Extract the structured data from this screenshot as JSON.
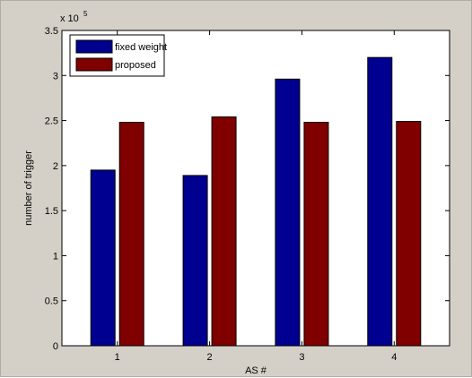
{
  "colors": {
    "figure_bg": "#d4d0c8",
    "axes_bg": "#ffffff",
    "series_1": "#000090",
    "series_2": "#800000"
  },
  "chart_data": {
    "type": "bar",
    "categories": [
      "1",
      "2",
      "3",
      "4"
    ],
    "series": [
      {
        "name": "fixed weight",
        "values": [
          195000,
          189000,
          296000,
          320000
        ]
      },
      {
        "name": "proposed",
        "values": [
          248000,
          254000,
          248000,
          249000
        ]
      }
    ],
    "xlabel": "AS #",
    "ylabel": "number of trigger",
    "ylim": [
      0,
      350000
    ],
    "yticks": [
      0,
      50000,
      100000,
      150000,
      200000,
      250000,
      300000,
      350000
    ],
    "ytick_labels": [
      "0",
      "0.5",
      "1",
      "1.5",
      "2",
      "2.5",
      "3",
      "3.5"
    ],
    "y_exponent": {
      "base": "x 10",
      "power": "5"
    },
    "grid": false,
    "legend_position": "top-left"
  }
}
